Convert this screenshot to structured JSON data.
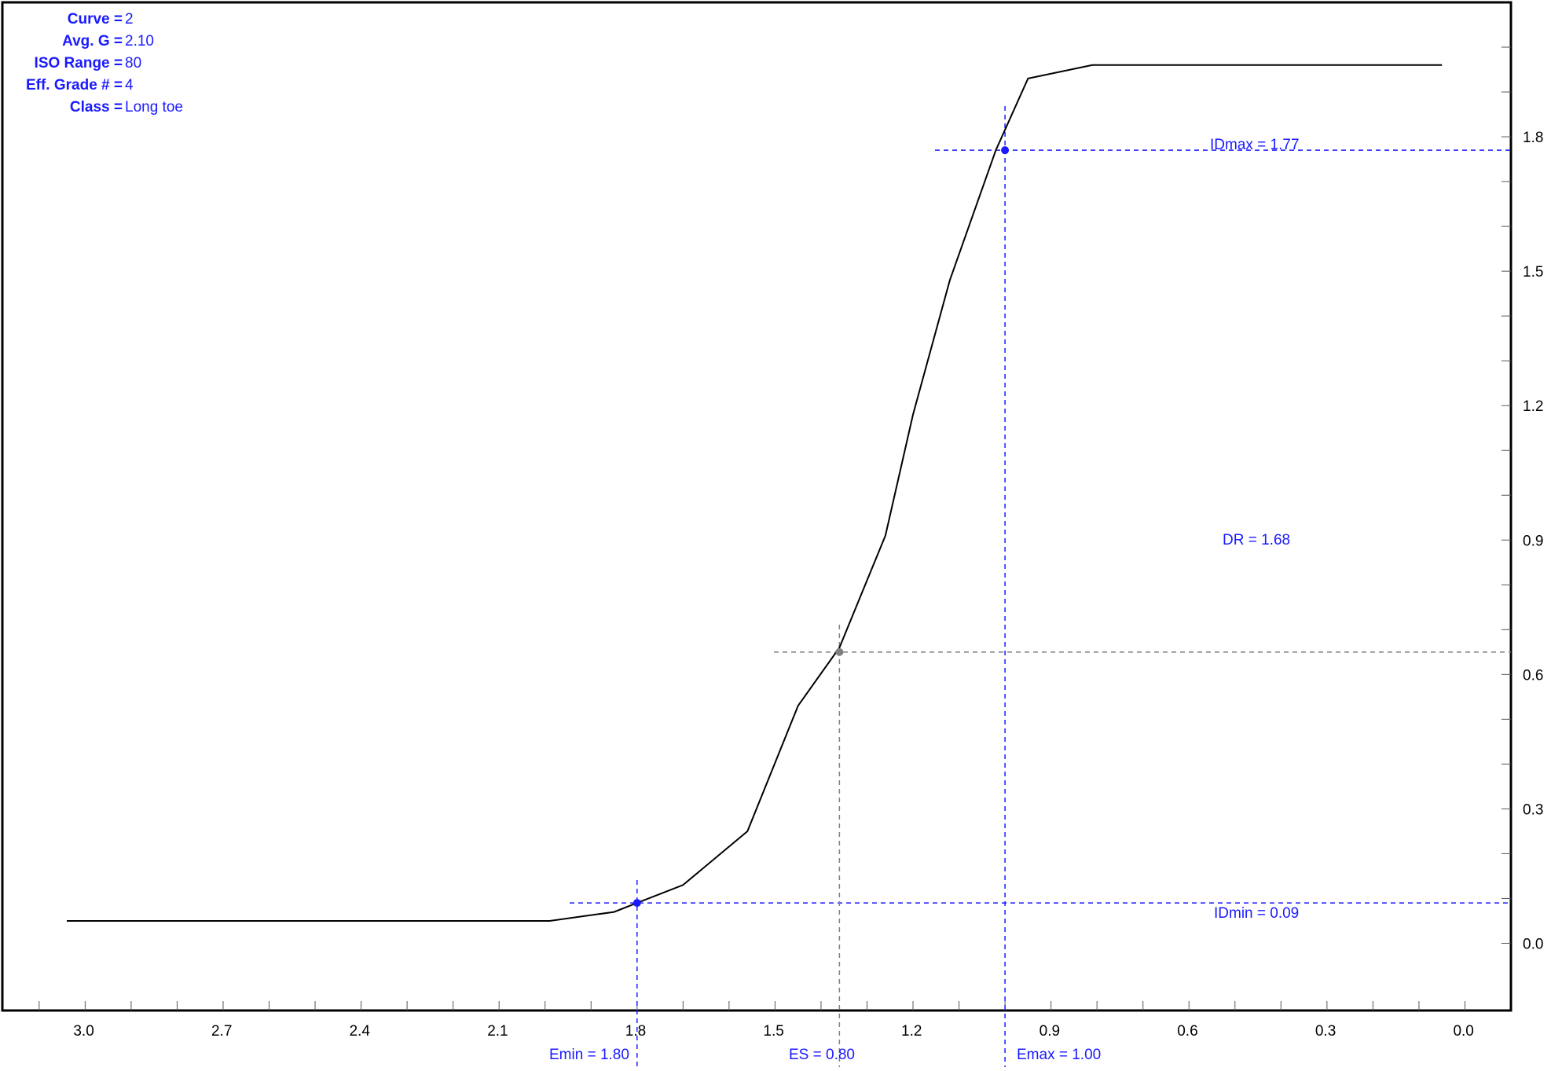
{
  "info": [
    {
      "label": "Curve",
      "value": "2"
    },
    {
      "label": "Avg. G",
      "value": "2.10"
    },
    {
      "label": "ISO Range",
      "value": "80"
    },
    {
      "label": "Eff. Grade #",
      "value": "4"
    },
    {
      "label": "Class",
      "value": "Long toe"
    }
  ],
  "annotations": {
    "idmax": "IDmax = 1.77",
    "idmin": "IDmin = 0.09",
    "dr": "DR = 1.68",
    "emin": "Emin = 1.80",
    "es": "ES = 0.80",
    "emax": "Emax = 1.00"
  },
  "colors": {
    "curve": "#000000",
    "markers": "#1a1aff",
    "midpoint": "#808080",
    "frame": "#000000"
  },
  "chart_data": {
    "type": "line",
    "x_reversed": true,
    "xlim": [
      3.18,
      -0.1
    ],
    "ylim": [
      -0.15,
      2.1
    ],
    "x_ticks": [
      "3.0",
      "2.7",
      "2.4",
      "2.1",
      "1.8",
      "1.5",
      "1.2",
      "0.9",
      "0.6",
      "0.3",
      "0.0"
    ],
    "y_ticks": [
      "0.0",
      "0.3",
      "0.6",
      "0.9",
      "1.2",
      "1.5",
      "1.8"
    ],
    "series": [
      {
        "x": [
          3.04,
          2.4,
          1.99,
          1.85,
          1.8,
          1.7,
          1.56,
          1.45,
          1.36,
          1.26,
          1.2,
          1.12,
          1.02,
          0.95,
          0.81,
          0.05
        ],
        "y": [
          0.05,
          0.05,
          0.05,
          0.07,
          0.09,
          0.13,
          0.25,
          0.53,
          0.66,
          0.91,
          1.18,
          1.48,
          1.77,
          1.93,
          1.96,
          1.96
        ]
      }
    ],
    "reference_points": [
      {
        "x": 1.8,
        "y": 0.09
      },
      {
        "x": 1.36,
        "y": 0.65
      },
      {
        "x": 1.0,
        "y": 1.77
      }
    ]
  }
}
